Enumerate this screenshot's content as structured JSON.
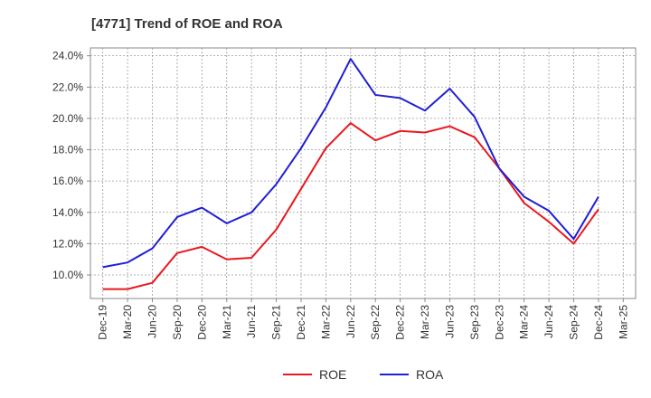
{
  "chart_data": {
    "type": "line",
    "title": "[4771]  Trend of ROE and ROA",
    "xlabel": "",
    "ylabel": "",
    "x": [
      "Dec-19",
      "Mar-20",
      "Jun-20",
      "Sep-20",
      "Dec-20",
      "Mar-21",
      "Jun-21",
      "Sep-21",
      "Dec-21",
      "Mar-22",
      "Jun-22",
      "Sep-22",
      "Dec-22",
      "Mar-23",
      "Jun-23",
      "Sep-23",
      "Dec-23",
      "Mar-24",
      "Jun-24",
      "Sep-24",
      "Dec-24",
      "Mar-25"
    ],
    "ylim": [
      8.5,
      24.5
    ],
    "yticks": [
      10,
      12,
      14,
      16,
      18,
      20,
      22,
      24
    ],
    "ytick_labels": [
      "10.0%",
      "12.0%",
      "14.0%",
      "16.0%",
      "18.0%",
      "20.0%",
      "22.0%",
      "24.0%"
    ],
    "grid": true,
    "legend_position": "bottom",
    "series": [
      {
        "name": "ROE",
        "color": "#e8191f",
        "values": [
          9.1,
          9.1,
          9.5,
          11.4,
          11.8,
          11.0,
          11.1,
          12.9,
          15.5,
          18.1,
          19.7,
          18.6,
          19.2,
          19.1,
          19.5,
          18.8,
          16.8,
          14.6,
          13.4,
          12.0,
          14.2,
          null
        ]
      },
      {
        "name": "ROA",
        "color": "#1f1fd6",
        "values": [
          10.5,
          10.8,
          11.7,
          13.7,
          14.3,
          13.3,
          14.0,
          15.8,
          18.1,
          20.7,
          23.8,
          21.5,
          21.3,
          20.5,
          21.9,
          20.1,
          16.8,
          15.0,
          14.1,
          12.3,
          15.0,
          null
        ]
      }
    ]
  }
}
